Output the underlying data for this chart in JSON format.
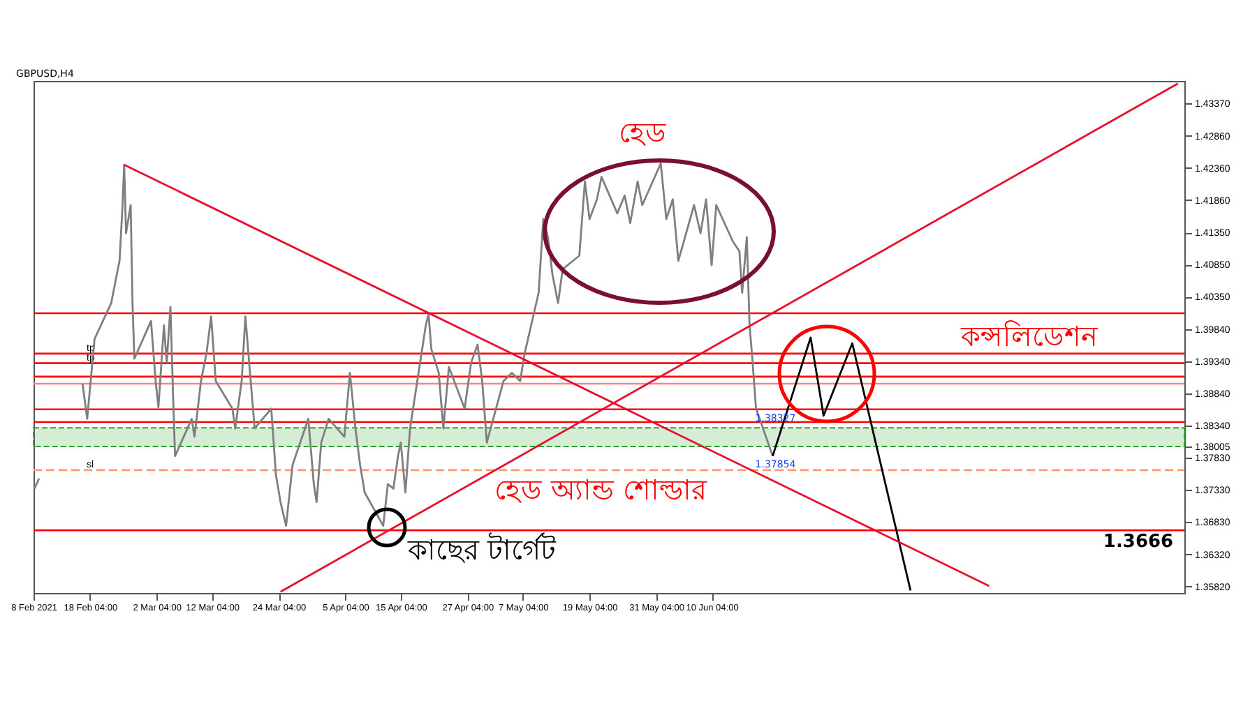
{
  "chart_data": {
    "type": "line",
    "title": "GBPUSD,H4",
    "xlim": [
      "2021-02-08T00:00",
      "2021-09-03T08:00"
    ],
    "ylim": [
      1.3572,
      1.4372
    ],
    "xticks": [
      {
        "value": "2021-02-08T00:00",
        "label": "8 Feb 2021"
      },
      {
        "value": "2021-02-18T04:00",
        "label": "18 Feb 04:00"
      },
      {
        "value": "2021-03-02T04:00",
        "label": "2 Mar 04:00"
      },
      {
        "value": "2021-03-12T04:00",
        "label": "12 Mar 04:00"
      },
      {
        "value": "2021-03-24T04:00",
        "label": "24 Mar 04:00"
      },
      {
        "value": "2021-04-05T04:00",
        "label": "5 Apr 04:00"
      },
      {
        "value": "2021-04-15T04:00",
        "label": "15 Apr 04:00"
      },
      {
        "value": "2021-04-27T04:00",
        "label": "27 Apr 04:00"
      },
      {
        "value": "2021-05-07T04:00",
        "label": "7 May 04:00"
      },
      {
        "value": "2021-05-19T04:00",
        "label": "19 May 04:00"
      },
      {
        "value": "2021-05-31T04:00",
        "label": "31 May 04:00"
      },
      {
        "value": "2021-06-10T04:00",
        "label": "10 Jun 04:00"
      }
    ],
    "yticks": [
      {
        "value": 1.4337,
        "label": "1.43370"
      },
      {
        "value": 1.4286,
        "label": "1.42860"
      },
      {
        "value": 1.4236,
        "label": "1.42360"
      },
      {
        "value": 1.4186,
        "label": "1.41860"
      },
      {
        "value": 1.4135,
        "label": "1.41350"
      },
      {
        "value": 1.4085,
        "label": "1.40850"
      },
      {
        "value": 1.4035,
        "label": "1.40350"
      },
      {
        "value": 1.3984,
        "label": "1.39840"
      },
      {
        "value": 1.3934,
        "label": "1.39340"
      },
      {
        "value": 1.3884,
        "label": "1.38840"
      },
      {
        "value": 1.3834,
        "label": "1.38340"
      },
      {
        "value": 1.38005,
        "label": "1.38005"
      },
      {
        "value": 1.3783,
        "label": "1.37830"
      },
      {
        "value": 1.3733,
        "label": "1.37330"
      },
      {
        "value": 1.3683,
        "label": "1.36830"
      },
      {
        "value": 1.3632,
        "label": "1.36320"
      },
      {
        "value": 1.3582,
        "label": "1.35820"
      }
    ],
    "grid": false,
    "marker": "none",
    "line_style": "solid",
    "series": [
      {
        "color": "#7f7f7f",
        "x": [
          "2021-02-08T04:00",
          "2021-02-09T00:00",
          "2021-02-11T08:00",
          "2021-02-16T20:00",
          "2021-02-17T16:00",
          "2021-02-19T00:00",
          "2021-02-22T00:00",
          "2021-02-22T20:00",
          "2021-02-23T12:00",
          "2021-02-24T00:00",
          "2021-02-24T08:00",
          "2021-02-24T16:00",
          "2021-02-25T12:00",
          "2021-02-25T20:00",
          "2021-02-26T04:00",
          "2021-03-01T04:00",
          "2021-03-02T00:00",
          "2021-03-02T12:00",
          "2021-03-03T12:00",
          "2021-03-04T00:00",
          "2021-03-04T16:00",
          "2021-03-05T04:00",
          "2021-03-05T12:00",
          "2021-03-08T12:00",
          "2021-03-09T00:00",
          "2021-03-10T04:00",
          "2021-03-11T04:00",
          "2021-03-12T00:00",
          "2021-03-12T20:00",
          "2021-03-15T20:00",
          "2021-03-16T08:00",
          "2021-03-17T12:00",
          "2021-03-18T04:00",
          "2021-03-19T00:00",
          "2021-03-19T20:00",
          "2021-03-22T20:00",
          "2021-03-23T16:00",
          "2021-03-24T12:00",
          "2021-03-25T12:00",
          "2021-03-26T16:00",
          "2021-03-29T12:00",
          "2021-03-30T12:00",
          "2021-03-31T00:00",
          "2021-03-31T20:00",
          "2021-04-02T04:00",
          "2021-04-05T00:00",
          "2021-04-06T00:00",
          "2021-04-07T00:00",
          "2021-04-07T20:00",
          "2021-04-08T16:00",
          "2021-04-12T00:00",
          "2021-04-12T20:00",
          "2021-04-13T20:00",
          "2021-04-14T16:00",
          "2021-04-15T04:00",
          "2021-04-16T00:00",
          "2021-04-16T20:00",
          "2021-04-19T16:00",
          "2021-04-20T04:00",
          "2021-04-20T16:00",
          "2021-04-22T00:00",
          "2021-04-22T20:00",
          "2021-04-23T20:00",
          "2021-04-26T16:00",
          "2021-04-27T20:00",
          "2021-04-29T00:00",
          "2021-04-29T20:00",
          "2021-04-30T16:00",
          "2021-05-03T16:00",
          "2021-05-05T04:00",
          "2021-05-06T16:00",
          "2021-05-07T12:00",
          "2021-05-10T00:00",
          "2021-05-10T20:00",
          "2021-05-11T16:00",
          "2021-05-12T12:00",
          "2021-05-13T12:00",
          "2021-05-14T08:00",
          "2021-05-17T08:00",
          "2021-05-18T08:00",
          "2021-05-19T04:00",
          "2021-05-20T12:00",
          "2021-05-21T08:00",
          "2021-05-24T04:00",
          "2021-05-25T12:00",
          "2021-05-26T12:00",
          "2021-05-27T20:00",
          "2021-05-28T16:00",
          "2021-06-01T00:00",
          "2021-06-02T00:00",
          "2021-06-03T04:00",
          "2021-06-04T04:00",
          "2021-06-07T00:00",
          "2021-06-08T04:00",
          "2021-06-09T04:00",
          "2021-06-10T04:00",
          "2021-06-11T00:00",
          "2021-06-14T00:00",
          "2021-06-15T04:00",
          "2021-06-15T16:00",
          "2021-06-16T12:00",
          "2021-06-17T00:00",
          "2021-06-17T12:00",
          "2021-06-18T04:00",
          "2021-06-21T04:00"
        ],
        "values": [
          1.3735,
          1.3751,
          null,
          1.3899,
          1.3844,
          1.3969,
          1.4025,
          1.4062,
          1.4091,
          1.4171,
          1.4241,
          1.4134,
          1.4178,
          1.4025,
          1.3938,
          1.3997,
          1.3903,
          1.3862,
          1.399,
          1.3932,
          1.4019,
          1.3873,
          1.3786,
          1.3844,
          1.3816,
          1.3903,
          1.3947,
          1.4004,
          1.3903,
          1.386,
          1.3829,
          1.3903,
          1.4004,
          1.3916,
          1.3829,
          1.386,
          1.3757,
          1.3714,
          1.3677,
          1.3772,
          1.3844,
          1.3742,
          1.3714,
          1.3807,
          1.3844,
          1.3816,
          1.3916,
          1.3829,
          1.3772,
          1.3729,
          1.3677,
          1.3742,
          1.3735,
          1.3786,
          1.3807,
          1.3729,
          1.3829,
          1.399,
          1.4008,
          1.3953,
          1.3916,
          1.3829,
          1.3925,
          1.386,
          1.3932,
          1.396,
          1.3903,
          1.3807,
          1.3903,
          1.3916,
          1.3903,
          1.3947,
          1.4041,
          1.4156,
          1.4128,
          1.4069,
          1.4025,
          1.4078,
          1.4099,
          1.4215,
          1.4156,
          1.4187,
          1.4222,
          1.4165,
          1.4193,
          1.415,
          1.4215,
          1.4178,
          1.4243,
          1.4156,
          1.4187,
          1.4091,
          1.4178,
          1.4134,
          1.4187,
          1.4084,
          1.4178,
          1.4121,
          1.4106,
          1.4041,
          1.4128,
          1.399,
          1.3938,
          1.386,
          1.3786
        ]
      },
      {
        "color": "#000000",
        "x": [
          "2021-06-21T04:00",
          "2021-06-28T00:00",
          "2021-06-30T08:00",
          "2021-07-05T12:00",
          "2021-07-16T00:00"
        ],
        "values": [
          1.3786,
          1.3971,
          1.3849,
          1.3962,
          1.3576
        ]
      },
      {
        "color": "#e8102e",
        "x": [
          "2021-02-24T08:00",
          "2021-07-30T04:00"
        ],
        "values": [
          1.4241,
          1.3583
        ]
      },
      {
        "color": "#e8102e",
        "x": [
          "2021-03-24T12:00",
          "2021-09-02T04:00"
        ],
        "values": [
          1.3574,
          1.4368
        ]
      }
    ],
    "ref_lines": [
      {
        "axis": "y",
        "value": 1.4009,
        "color": "#ff0000"
      },
      {
        "axis": "y",
        "value": 1.3946,
        "color": "#ff0000",
        "label": "tp"
      },
      {
        "axis": "y",
        "value": 1.3931,
        "color": "#ff0000",
        "label": "tp"
      },
      {
        "axis": "y",
        "value": 1.391,
        "color": "#ff0000"
      },
      {
        "axis": "y",
        "value": 1.3899,
        "color": "#ff8080"
      },
      {
        "axis": "y",
        "value": 1.3859,
        "color": "#ff0000"
      },
      {
        "axis": "y",
        "value": 1.3839,
        "color": "#ff0000"
      },
      {
        "axis": "y",
        "value": 1.367,
        "color": "#ff0000"
      },
      {
        "axis": "y",
        "value": 1.3764,
        "color": "#ff9966",
        "line_style": "dashed",
        "label": "sl"
      }
    ],
    "bands": [
      {
        "axis": "y",
        "from": 1.3801,
        "to": 1.383,
        "color": "#2ca02c"
      }
    ],
    "annotations": [
      "হেড",
      "কন্সলিডেশন",
      "হেড অ্যান্ড শোল্ডার",
      "কাছের  টার্গেট",
      "1.3666",
      {
        "text": "1.37854",
        "x": "2021-06-21T16:00",
        "y": 1.3783
      },
      {
        "text": "1.38327",
        "x": "2021-06-21T16:00",
        "y": 1.3825
      }
    ]
  }
}
